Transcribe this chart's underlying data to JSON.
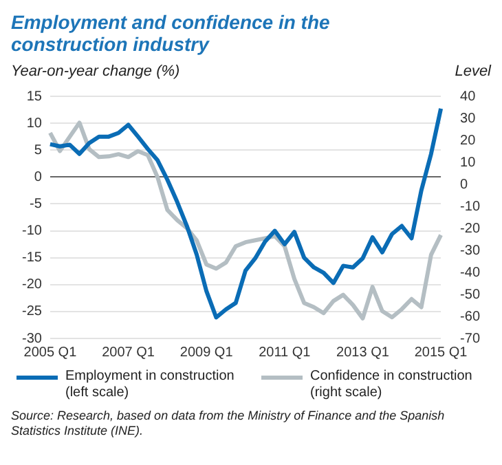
{
  "chart_data": {
    "type": "line",
    "title": "Employment and confidence in the construction industry",
    "ylabel": "Year-on-year change (%)",
    "y2label": "Level",
    "categories": [
      "2005 Q1",
      null,
      null,
      null,
      null,
      null,
      null,
      null,
      "2007 Q1",
      null,
      null,
      null,
      null,
      null,
      null,
      null,
      "2009 Q1",
      null,
      null,
      null,
      null,
      null,
      null,
      null,
      "2011 Q1",
      null,
      null,
      null,
      null,
      null,
      null,
      null,
      "2013 Q1",
      null,
      null,
      null,
      null,
      null,
      null,
      null,
      "2015 Q1"
    ],
    "series": [
      {
        "name": "Employment in construction (left scale)",
        "color": "#0a6cb5",
        "values": [
          6.1,
          5.7,
          6.0,
          4.3,
          6.3,
          7.5,
          7.5,
          8.2,
          9.7,
          7.5,
          5.2,
          3.1,
          -0.5,
          -4.6,
          -9.1,
          -14.4,
          -21.2,
          -26.1,
          -24.6,
          -23.4,
          -17.4,
          -15.1,
          -12.0,
          -10.0,
          -12.5,
          -10.2,
          -15.0,
          -16.8,
          -17.8,
          -19.7,
          -16.5,
          -16.8,
          -15.1,
          -11.2,
          -14.0,
          -10.6,
          -9.1,
          -11.4,
          -2.5,
          4.3,
          12.7
        ]
      },
      {
        "name": "Confidence in construction (right scale)",
        "color": "#b4bec3",
        "axis": "y2",
        "values": [
          23.4,
          15.1,
          21.6,
          28,
          16,
          12.4,
          12.7,
          13.7,
          12.4,
          15.1,
          13.3,
          3.2,
          -11.6,
          -16.2,
          -19.9,
          -25.4,
          -36.4,
          -38.3,
          -35.5,
          -28.1,
          -26.3,
          -25.4,
          -24.5,
          -23.5,
          -28.1,
          -42.9,
          -53.9,
          -55.8,
          -58.5,
          -53,
          -50.2,
          -54.8,
          -60.9,
          -46.6,
          -57.6,
          -60.4,
          -56.7,
          -52.1,
          -55.8,
          -32,
          -23
        ]
      }
    ],
    "ylim": [
      -30,
      15
    ],
    "yticks": [
      -30,
      -25,
      -20,
      -15,
      -10,
      -5,
      0,
      5,
      10,
      15
    ],
    "y2lim": [
      -70,
      40
    ],
    "y2ticks": [
      -70,
      -60,
      -50,
      -40,
      -30,
      -20,
      -10,
      0,
      10,
      20,
      30,
      40
    ],
    "grid": "y",
    "legend": "bottom",
    "line_style": "solid",
    "marker": "none",
    "annotations": [
      "Source: Research, based on data from the Ministry of Finance and the Spanish Statistics Institute (INE)."
    ]
  }
}
